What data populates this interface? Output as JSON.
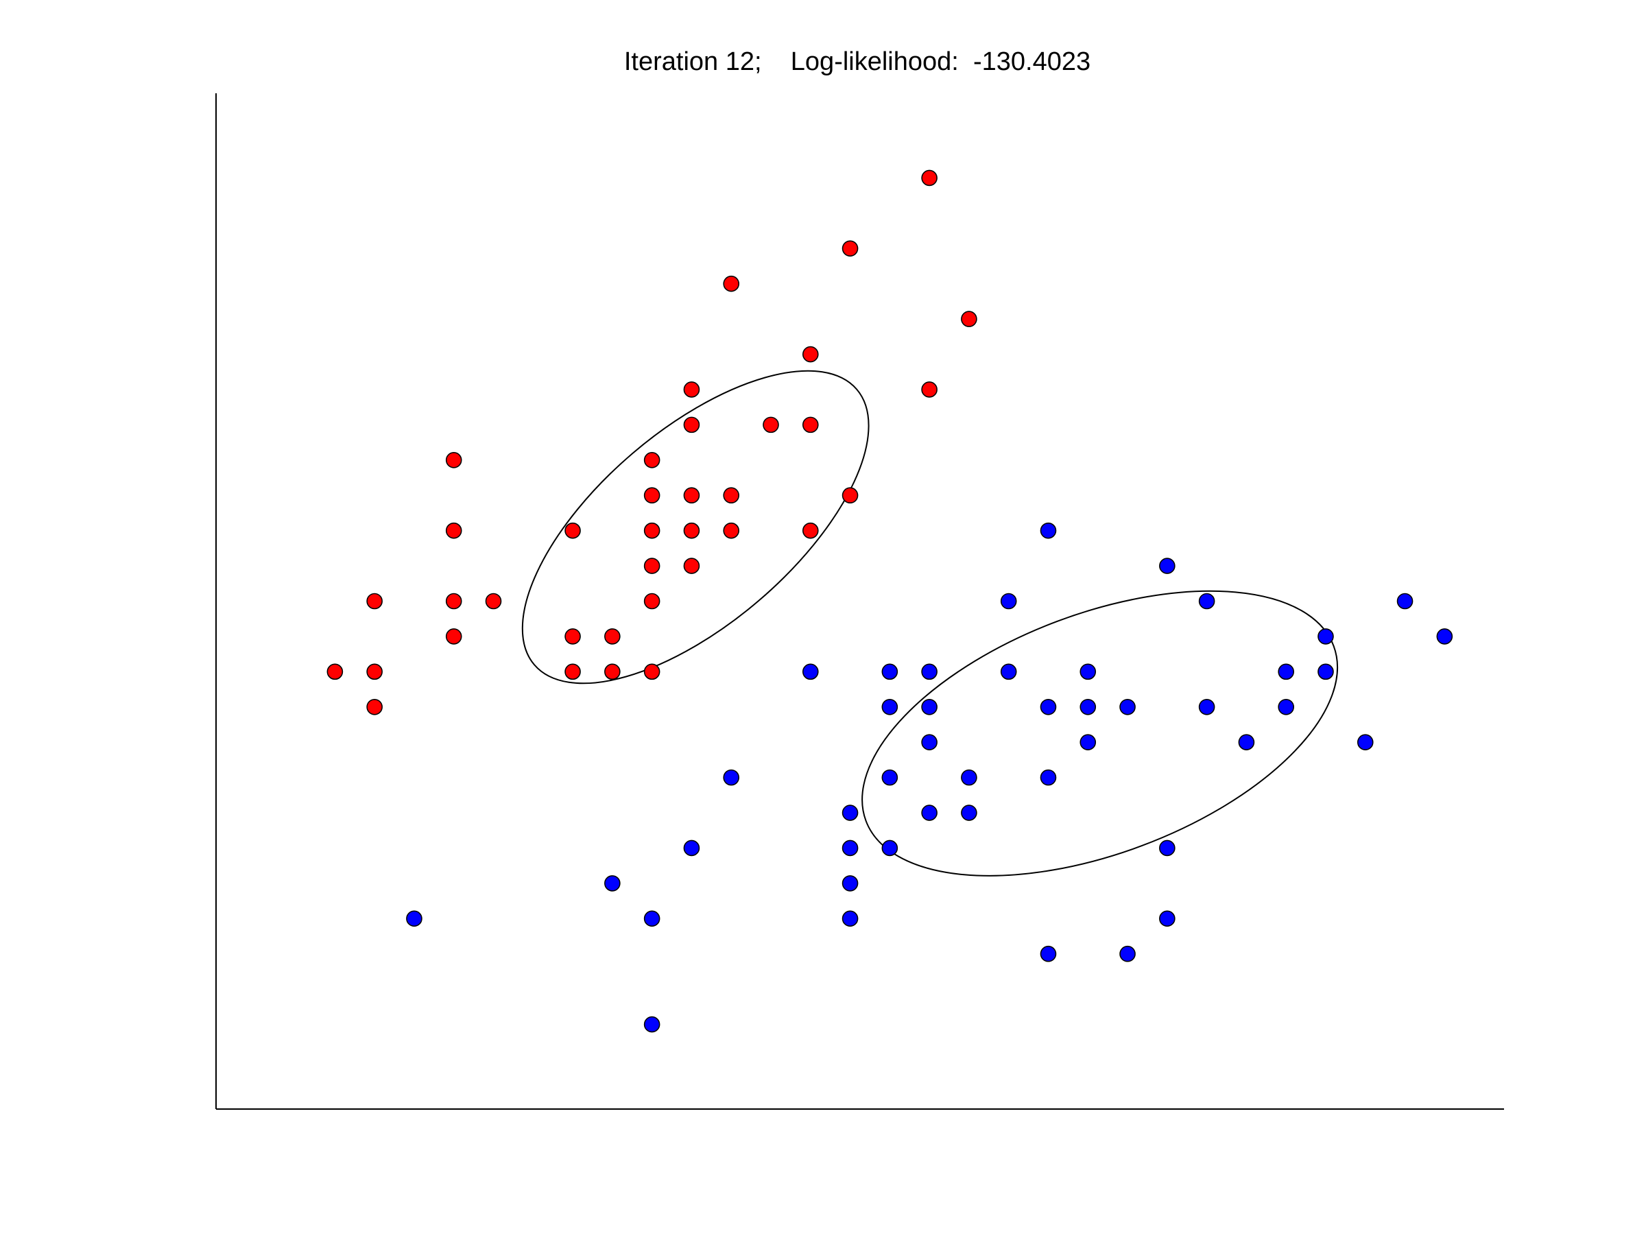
{
  "chart_data": {
    "type": "scatter",
    "title": "Iteration 12;    Log-likelihood:  -130.4023",
    "xlabel": "",
    "ylabel": "",
    "xlim": [
      -1,
      31.5
    ],
    "ylim": [
      -1,
      27.8
    ],
    "grid": false,
    "axes": [
      "left",
      "bottom"
    ],
    "series": [
      {
        "color": "#ff0000",
        "points": [
          [
            17,
            25.4
          ],
          [
            15,
            23.4
          ],
          [
            12,
            22.4
          ],
          [
            18,
            21.4
          ],
          [
            14,
            20.4
          ],
          [
            17,
            19.4
          ],
          [
            11,
            19.4
          ],
          [
            11,
            18.4
          ],
          [
            13,
            18.4
          ],
          [
            14,
            18.4
          ],
          [
            5,
            17.4
          ],
          [
            10,
            17.4
          ],
          [
            10,
            16.4
          ],
          [
            11,
            16.4
          ],
          [
            12,
            16.4
          ],
          [
            15,
            16.4
          ],
          [
            5,
            15.4
          ],
          [
            8,
            15.4
          ],
          [
            10,
            15.4
          ],
          [
            11,
            15.4
          ],
          [
            12,
            15.4
          ],
          [
            14,
            15.4
          ],
          [
            10,
            14.4
          ],
          [
            11,
            14.4
          ],
          [
            3,
            13.4
          ],
          [
            5,
            13.4
          ],
          [
            6,
            13.4
          ],
          [
            10,
            13.4
          ],
          [
            5,
            12.4
          ],
          [
            8,
            12.4
          ],
          [
            9,
            12.4
          ],
          [
            2,
            11.4
          ],
          [
            3,
            11.4
          ],
          [
            8,
            11.4
          ],
          [
            9,
            11.4
          ],
          [
            10,
            11.4
          ],
          [
            3,
            10.4
          ]
        ]
      },
      {
        "color": "#0000ff",
        "points": [
          [
            20,
            15.4
          ],
          [
            23,
            14.4
          ],
          [
            19,
            13.4
          ],
          [
            24,
            13.4
          ],
          [
            29,
            13.4
          ],
          [
            27,
            12.4
          ],
          [
            30,
            12.4
          ],
          [
            14,
            11.4
          ],
          [
            16,
            11.4
          ],
          [
            17,
            11.4
          ],
          [
            19,
            11.4
          ],
          [
            21,
            11.4
          ],
          [
            26,
            11.4
          ],
          [
            27,
            11.4
          ],
          [
            16,
            10.4
          ],
          [
            17,
            10.4
          ],
          [
            20,
            10.4
          ],
          [
            21,
            10.4
          ],
          [
            22,
            10.4
          ],
          [
            24,
            10.4
          ],
          [
            26,
            10.4
          ],
          [
            17,
            9.4
          ],
          [
            21,
            9.4
          ],
          [
            25,
            9.4
          ],
          [
            28,
            9.4
          ],
          [
            12,
            8.4
          ],
          [
            16,
            8.4
          ],
          [
            18,
            8.4
          ],
          [
            20,
            8.4
          ],
          [
            15,
            7.4
          ],
          [
            17,
            7.4
          ],
          [
            18,
            7.4
          ],
          [
            11,
            6.4
          ],
          [
            15,
            6.4
          ],
          [
            16,
            6.4
          ],
          [
            23,
            6.4
          ],
          [
            9,
            5.4
          ],
          [
            15,
            5.4
          ],
          [
            4,
            4.4
          ],
          [
            10,
            4.4
          ],
          [
            15,
            4.4
          ],
          [
            23,
            4.4
          ],
          [
            20,
            3.4
          ],
          [
            22,
            3.4
          ],
          [
            10,
            1.4
          ]
        ]
      }
    ],
    "ellipses": [
      {
        "cx": 11.1,
        "cy": 15.5,
        "rx": 5.35,
        "ry": 2.75,
        "angle": 40.5
      },
      {
        "cx": 21.3,
        "cy": 9.65,
        "rx": 6.3,
        "ry": 3.4,
        "angle": 20.5
      }
    ]
  }
}
